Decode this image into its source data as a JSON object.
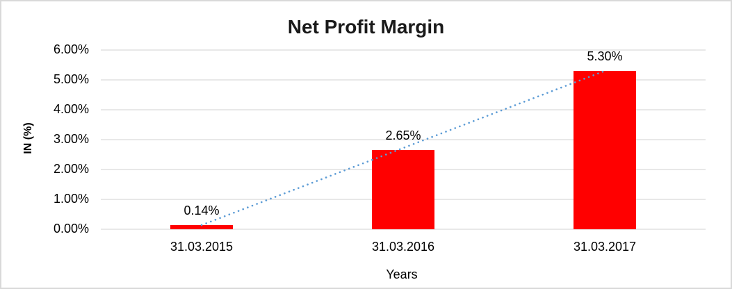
{
  "chart_data": {
    "type": "bar",
    "title": "Net Profit Margin",
    "categories": [
      "31.03.2015",
      "31.03.2016",
      "31.03.2017"
    ],
    "values": [
      0.14,
      2.65,
      5.3
    ],
    "data_labels": [
      "0.14%",
      "2.65%",
      "5.30%"
    ],
    "xlabel": "Years",
    "ylabel": "IN (%)",
    "ylim": [
      0,
      6
    ],
    "ytick_labels": [
      "0.00%",
      "1.00%",
      "2.00%",
      "3.00%",
      "4.00%",
      "5.00%",
      "6.00%"
    ],
    "grid": true,
    "legend": "none",
    "trendline": {
      "style": "dotted",
      "from": [
        0,
        0.14
      ],
      "to": [
        2,
        5.3
      ]
    },
    "colors": {
      "bar": "#ff0000",
      "trendline": "#5b9bd5",
      "gridline": "#d9d9d9",
      "text": "#000000",
      "title_text": "#1a1a1a",
      "chart_border": "#d9d9d9",
      "window_edge": "#3f3f3f",
      "background": "#ffffff"
    }
  }
}
